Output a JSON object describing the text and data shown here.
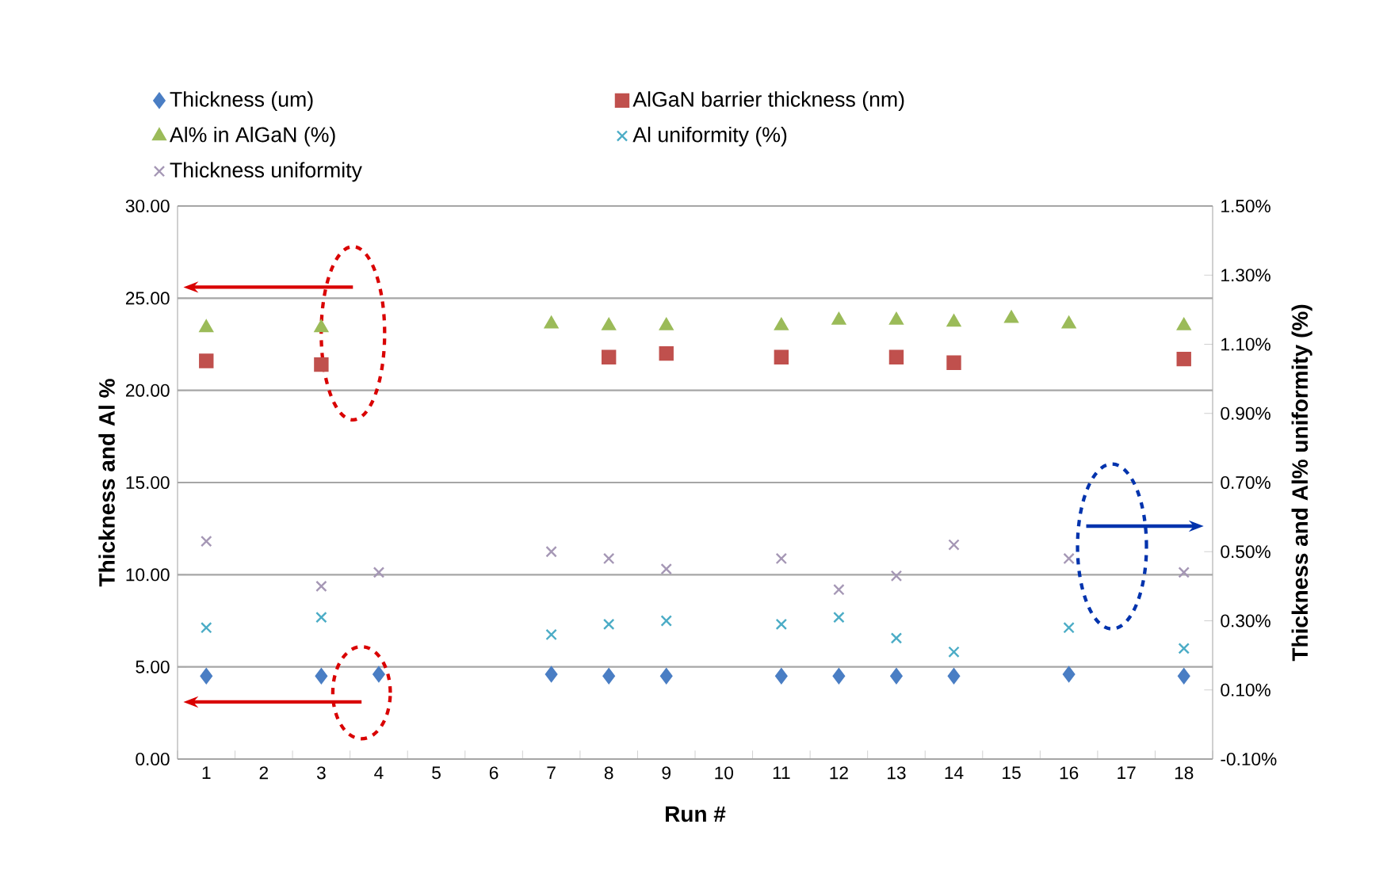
{
  "chart_data": {
    "type": "scatter",
    "xlabel": "Run #",
    "ylabel": "Thickness and Al %",
    "y2label": "Thickness and Al% uniformity (%)",
    "categories": [
      "1",
      "2",
      "3",
      "4",
      "5",
      "6",
      "7",
      "8",
      "9",
      "10",
      "11",
      "12",
      "13",
      "14",
      "15",
      "16",
      "17",
      "18"
    ],
    "ylim": [
      0,
      30
    ],
    "yticks": [
      {
        "value": 0,
        "label": "0.00"
      },
      {
        "value": 5,
        "label": "5.00"
      },
      {
        "value": 10,
        "label": "10.00"
      },
      {
        "value": 15,
        "label": "15.00"
      },
      {
        "value": 20,
        "label": "20.00"
      },
      {
        "value": 25,
        "label": "25.00"
      },
      {
        "value": 30,
        "label": "30.00"
      }
    ],
    "y2lim": [
      -0.1,
      1.5
    ],
    "y2ticks": [
      {
        "value": -0.1,
        "label": "-0.10%"
      },
      {
        "value": 0.1,
        "label": "0.10%"
      },
      {
        "value": 0.3,
        "label": "0.30%"
      },
      {
        "value": 0.5,
        "label": "0.50%"
      },
      {
        "value": 0.7,
        "label": "0.70%"
      },
      {
        "value": 0.9,
        "label": "0.90%"
      },
      {
        "value": 1.1,
        "label": "1.10%"
      },
      {
        "value": 1.3,
        "label": "1.30%"
      },
      {
        "value": 1.5,
        "label": "1.50%"
      }
    ],
    "grid": "y",
    "legend": "top",
    "series": [
      {
        "name": "Thickness (um)",
        "color": "#4a7ec4",
        "marker": "diamond",
        "values": [
          4.5,
          null,
          4.5,
          4.6,
          null,
          null,
          4.6,
          4.5,
          4.5,
          null,
          4.5,
          4.5,
          4.5,
          4.5,
          null,
          4.6,
          null,
          4.5
        ]
      },
      {
        "name": "AlGaN barrier thickness (nm)",
        "color": "#c0504d",
        "marker": "square",
        "values": [
          21.6,
          null,
          21.4,
          null,
          null,
          null,
          null,
          21.8,
          22.0,
          null,
          21.8,
          null,
          21.8,
          21.5,
          null,
          null,
          null,
          21.7
        ]
      },
      {
        "name": "Al% in AlGaN (%)",
        "color": "#9bbb59",
        "marker": "triangle",
        "values": [
          23.4,
          null,
          23.4,
          null,
          null,
          null,
          23.6,
          23.5,
          23.5,
          null,
          23.5,
          23.8,
          23.8,
          23.7,
          23.9,
          23.6,
          null,
          23.5
        ]
      },
      {
        "name": "Al uniformity (%)",
        "color": "#4bacc6",
        "marker": "cross",
        "axis": "y2",
        "values": [
          0.28,
          null,
          0.31,
          null,
          null,
          null,
          0.26,
          0.29,
          0.3,
          null,
          0.29,
          0.31,
          0.25,
          0.21,
          null,
          0.28,
          null,
          0.22
        ]
      },
      {
        "name": "Thickness uniformity",
        "color": "#a597b5",
        "marker": "cross",
        "axis": "y2",
        "values": [
          0.53,
          null,
          0.4,
          0.44,
          null,
          null,
          0.5,
          0.48,
          0.45,
          null,
          0.48,
          0.39,
          0.43,
          0.52,
          null,
          0.48,
          null,
          0.44
        ]
      }
    ]
  }
}
